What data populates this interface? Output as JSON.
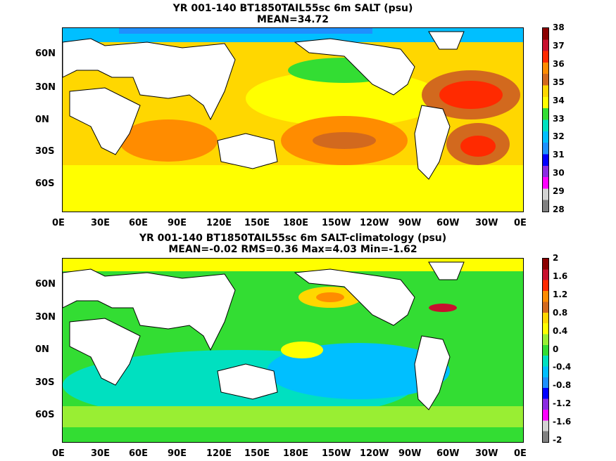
{
  "panels": [
    {
      "title1": "YR 001-140 BT1850TAIL55sc 6m SALT (psu)",
      "title2": "MEAN=34.72",
      "colorbar_labels": [
        "38",
        "37",
        "36",
        "35",
        "34",
        "33",
        "32",
        "31",
        "30",
        "29",
        "28"
      ],
      "colorbar_colors": [
        "#8b0000",
        "#c8102e",
        "#ff2a00",
        "#ff8c00",
        "#d2691e",
        "#ffd700",
        "#ffff00",
        "#33dd33",
        "#00e0c0",
        "#00bfff",
        "#1e90ff",
        "#0000ff",
        "#8a2be2",
        "#ff00ff",
        "#d3d3d3",
        "#808080"
      ]
    },
    {
      "title1": "YR 001-140 BT1850TAIL55sc 6m SALT-climatology (psu)",
      "title2": "MEAN=-0.02   RMS=0.36   Max=4.03   Min=-1.62",
      "colorbar_labels": [
        "2",
        "1.6",
        "1.2",
        "0.8",
        "0.4",
        "0",
        "-0.4",
        "-0.8",
        "-1.2",
        "-1.6",
        "-2"
      ],
      "colorbar_colors": [
        "#8b0000",
        "#c8102e",
        "#ff2a00",
        "#ff8c00",
        "#d2691e",
        "#ffd700",
        "#ffff00",
        "#99ee33",
        "#33dd33",
        "#00e0c0",
        "#00bfff",
        "#1e90ff",
        "#0000ff",
        "#8a2be2",
        "#ff00ff",
        "#d3d3d3",
        "#808080"
      ]
    }
  ],
  "axes": {
    "lat_labels": [
      "60N",
      "30N",
      "0N",
      "30S",
      "60S"
    ],
    "lon_labels": [
      "0E",
      "30E",
      "60E",
      "90E",
      "120E",
      "150E",
      "180E",
      "150W",
      "120W",
      "90W",
      "60W",
      "30W",
      "0E"
    ]
  }
}
